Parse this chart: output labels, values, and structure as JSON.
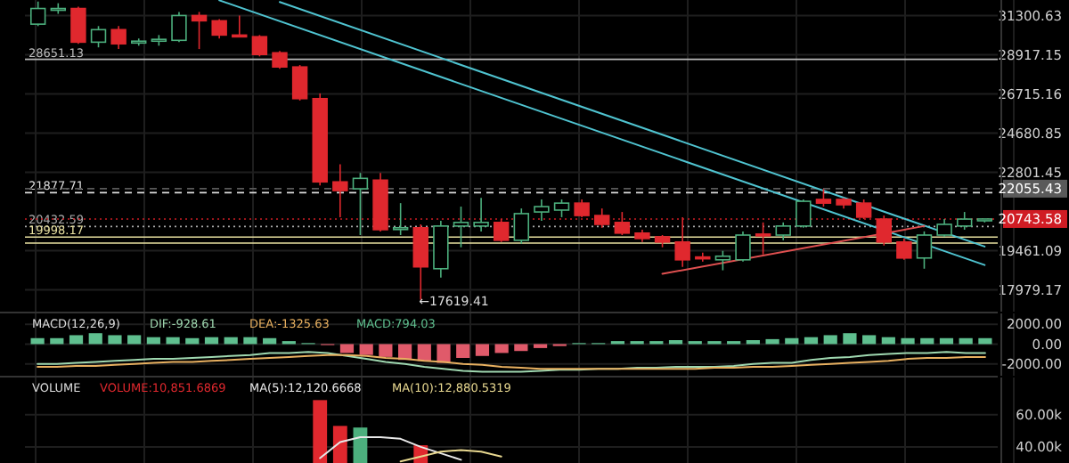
{
  "chart_data": [
    {
      "type": "candlestick",
      "categories": [
        null,
        null,
        null,
        null,
        null,
        null,
        null,
        null,
        null,
        null,
        null,
        null,
        null,
        null,
        null,
        null,
        null,
        null,
        null,
        null,
        null,
        null,
        null,
        null,
        null,
        null,
        null,
        null,
        null,
        null,
        null,
        null,
        null,
        null,
        null,
        null,
        null,
        null,
        null,
        null,
        null,
        null,
        null,
        null,
        null,
        null,
        null,
        null
      ],
      "ohlc": [
        [
          30760,
          32200,
          30640,
          31750
        ],
        [
          31640,
          32090,
          31410,
          31750
        ],
        [
          31750,
          31860,
          29560,
          29660
        ],
        [
          29660,
          30640,
          29350,
          30420
        ],
        [
          30420,
          30640,
          29250,
          29560
        ],
        [
          29610,
          29880,
          29450,
          29720
        ],
        [
          29720,
          30090,
          29450,
          29830
        ],
        [
          29770,
          31530,
          29660,
          31300
        ],
        [
          31300,
          31530,
          29250,
          30970
        ],
        [
          30970,
          31080,
          29880,
          30090
        ],
        [
          30090,
          31300,
          29990,
          30040
        ],
        [
          29990,
          30090,
          28820,
          28930
        ],
        [
          29030,
          29140,
          28110,
          28210
        ],
        [
          28210,
          28320,
          26360,
          26460
        ],
        [
          26460,
          26740,
          22200,
          22360
        ],
        [
          22360,
          23170,
          20820,
          21970
        ],
        [
          22050,
          22770,
          20080,
          22520
        ],
        [
          22440,
          22770,
          20230,
          20300
        ],
        [
          20340,
          21420,
          20080,
          20380
        ],
        [
          20380,
          20520,
          17619.41,
          18830
        ],
        [
          18760,
          20670,
          18430,
          20450
        ],
        [
          20450,
          21270,
          19590,
          20600
        ],
        [
          20450,
          21650,
          20230,
          20600
        ],
        [
          20600,
          20740,
          19800,
          19870
        ],
        [
          19870,
          21190,
          19730,
          20970
        ],
        [
          21040,
          21580,
          20670,
          21270
        ],
        [
          21120,
          21580,
          20820,
          21420
        ],
        [
          21420,
          21580,
          20820,
          20890
        ],
        [
          20890,
          21190,
          20380,
          20520
        ],
        [
          20600,
          21040,
          20080,
          20160
        ],
        [
          20160,
          20300,
          19800,
          19940
        ],
        [
          20010,
          20080,
          19590,
          19800
        ],
        [
          19800,
          20820,
          18830,
          19100
        ],
        [
          19210,
          19380,
          19030,
          19140
        ],
        [
          19100,
          19450,
          18700,
          19240
        ],
        [
          19100,
          20230,
          19030,
          20080
        ],
        [
          20120,
          20600,
          19310,
          20050
        ],
        [
          20080,
          20600,
          19870,
          20450
        ],
        [
          20450,
          21580,
          20380,
          21500
        ],
        [
          21580,
          22040,
          21270,
          21420
        ],
        [
          21580,
          21650,
          21190,
          21350
        ],
        [
          21420,
          21580,
          20740,
          20820
        ],
        [
          20740,
          20890,
          19660,
          19800
        ],
        [
          19800,
          19940,
          19100,
          19170
        ],
        [
          19170,
          20230,
          18760,
          20080
        ],
        [
          20080,
          20740,
          20010,
          20520
        ],
        [
          20450,
          21040,
          20300,
          20740
        ],
        [
          20710,
          20743.58,
          20600,
          20743.58
        ]
      ],
      "series": [
        {
          "type": "line",
          "color": "#4fc3d0",
          "values": [
            null,
            null,
            null,
            null,
            null,
            null,
            null,
            null,
            null,
            null,
            null,
            null,
            32170,
            null,
            null,
            null,
            null,
            null,
            null,
            null,
            null,
            null,
            null,
            null,
            null,
            null,
            null,
            null,
            null,
            null,
            null,
            null,
            null,
            null,
            null,
            null,
            null,
            null,
            null,
            null,
            null,
            null,
            null,
            null,
            null,
            null,
            null,
            19620
          ]
        },
        {
          "type": "line",
          "color": "#4fc3d0",
          "values": [
            null,
            null,
            null,
            null,
            null,
            null,
            null,
            null,
            null,
            32280,
            null,
            null,
            null,
            null,
            null,
            null,
            null,
            null,
            null,
            null,
            null,
            null,
            null,
            null,
            null,
            null,
            null,
            null,
            null,
            null,
            null,
            null,
            null,
            null,
            null,
            null,
            null,
            null,
            null,
            null,
            null,
            null,
            null,
            null,
            null,
            null,
            null,
            18900
          ]
        },
        {
          "type": "line",
          "color": "#e05050",
          "values": [
            null,
            null,
            null,
            null,
            null,
            null,
            null,
            null,
            null,
            null,
            null,
            null,
            null,
            null,
            null,
            null,
            null,
            null,
            null,
            null,
            null,
            null,
            null,
            null,
            null,
            null,
            null,
            null,
            null,
            null,
            null,
            18565,
            null,
            null,
            null,
            null,
            null,
            null,
            null,
            null,
            null,
            null,
            null,
            null,
            20450,
            null,
            null,
            null
          ]
        }
      ],
      "ylim": [
        17200,
        32300
      ],
      "yticks": [
        31300.63,
        28917.15,
        26715.16,
        24680.85,
        22801.45,
        19461.09,
        17979.17
      ],
      "log": true,
      "grid": true,
      "tick_labels": "y",
      "ref_lines": [
        {
          "axis": "y",
          "value": 28651.13,
          "label": "28651.13",
          "color": "#bbbbbb",
          "line_style": "solid"
        },
        {
          "axis": "y",
          "value": 21877.71,
          "label": "21877.71",
          "color": "#dddddd",
          "line_style": "dashed"
        },
        {
          "axis": "y",
          "value": 22055.43,
          "label": "22055.43",
          "color": "#5a5a5a",
          "line_style": "dashed"
        },
        {
          "axis": "y",
          "value": 20432.59,
          "label": "20432.59",
          "color": "#aaaaaa",
          "line_style": "dotted"
        },
        {
          "axis": "y",
          "value": 20743.58,
          "label": "20743.58",
          "color": "#d01c24",
          "line_style": "dotted"
        },
        {
          "axis": "y",
          "value": 19998.17,
          "label": "19998.17",
          "color": "#e8e0a0",
          "line_style": "solid"
        },
        {
          "axis": "y",
          "value": 19760,
          "label": null,
          "color": "#e8e0a0",
          "line_style": "solid"
        }
      ],
      "annotations": [
        "←17619.41"
      ]
    },
    {
      "type": "bar",
      "title": "MACD(12,26,9)",
      "categories": [
        null,
        null,
        null,
        null,
        null,
        null,
        null,
        null,
        null,
        null,
        null,
        null,
        null,
        null,
        null,
        null,
        null,
        null,
        null,
        null,
        null,
        null,
        null,
        null,
        null,
        null,
        null,
        null,
        null,
        null,
        null,
        null,
        null,
        null,
        null,
        null,
        null,
        null,
        null,
        null,
        null,
        null,
        null,
        null,
        null,
        null,
        null,
        null,
        null,
        null
      ],
      "series": [
        {
          "name": "DIF:-928.61",
          "type": "line",
          "color": "#9fd8b0",
          "values": [
            -2000,
            -2000,
            -1900,
            -1800,
            -1700,
            -1600,
            -1500,
            -1500,
            -1400,
            -1300,
            -1200,
            -1100,
            -900,
            -900,
            -800,
            -900,
            -1200,
            -1500,
            -1800,
            -2000,
            -2300,
            -2500,
            -2700,
            -2800,
            -2800,
            -2800,
            -2700,
            -2600,
            -2600,
            -2500,
            -2500,
            -2400,
            -2400,
            -2300,
            -2300,
            -2300,
            -2200,
            -2000,
            -1900,
            -1900,
            -1600,
            -1400,
            -1300,
            -1100,
            -1000,
            -900,
            -900,
            -800,
            -900,
            -900
          ]
        },
        {
          "name": "DEA:-1325.63",
          "type": "line",
          "color": "#e8b060",
          "values": [
            -2300,
            -2300,
            -2200,
            -2200,
            -2100,
            -2000,
            -1900,
            -1800,
            -1800,
            -1700,
            -1600,
            -1500,
            -1400,
            -1300,
            -1200,
            -1100,
            -1100,
            -1200,
            -1400,
            -1500,
            -1700,
            -1800,
            -2000,
            -2100,
            -2300,
            -2400,
            -2500,
            -2500,
            -2500,
            -2500,
            -2500,
            -2500,
            -2500,
            -2500,
            -2500,
            -2400,
            -2400,
            -2300,
            -2300,
            -2200,
            -2100,
            -2000,
            -1900,
            -1800,
            -1700,
            -1500,
            -1400,
            -1400,
            -1300,
            -1300
          ]
        },
        {
          "name": "MACD:794.03",
          "type": "bar",
          "color": "#5fbf8f",
          "values": [
            600,
            600,
            900,
            1100,
            900,
            900,
            700,
            700,
            600,
            700,
            700,
            700,
            600,
            300,
            100,
            -100,
            -900,
            -1100,
            -1300,
            -1600,
            -1700,
            -1900,
            -1400,
            -1200,
            -900,
            -700,
            -400,
            -200,
            100,
            100,
            300,
            300,
            300,
            400,
            300,
            300,
            300,
            400,
            500,
            600,
            700,
            900,
            1100,
            900,
            700,
            600,
            600,
            600,
            600,
            600
          ],
          "colors": [
            "#5fbf8f",
            "#5fbf8f",
            "#5fbf8f",
            "#5fbf8f",
            "#5fbf8f",
            "#5fbf8f",
            "#5fbf8f",
            "#5fbf8f",
            "#5fbf8f",
            "#5fbf8f",
            "#5fbf8f",
            "#5fbf8f",
            "#5fbf8f",
            "#5fbf8f",
            "#5fbf8f",
            "#e05a6a",
            "#e05a6a",
            "#e05a6a",
            "#e05a6a",
            "#e05a6a",
            "#e05a6a",
            "#e05a6a",
            "#e05a6a",
            "#e05a6a",
            "#e05a6a",
            "#e05a6a",
            "#e05a6a",
            "#e05a6a",
            "#5fbf8f",
            "#5fbf8f",
            "#5fbf8f",
            "#5fbf8f",
            "#5fbf8f",
            "#5fbf8f",
            "#5fbf8f",
            "#5fbf8f",
            "#5fbf8f",
            "#5fbf8f",
            "#5fbf8f",
            "#5fbf8f",
            "#5fbf8f",
            "#5fbf8f",
            "#5fbf8f",
            "#5fbf8f",
            "#5fbf8f",
            "#5fbf8f",
            "#5fbf8f",
            "#5fbf8f",
            "#5fbf8f",
            "#5fbf8f"
          ]
        }
      ],
      "ylim": [
        -3200,
        3100
      ],
      "yticks": [
        {
          "value": 2000,
          "label": "2000.00"
        },
        {
          "value": 0,
          "label": "0.00"
        },
        {
          "value": -2000,
          "label": "-2000.00"
        }
      ],
      "grid": true,
      "legend": "top left",
      "tick_labels": "y"
    },
    {
      "type": "bar",
      "title": "VOLUME",
      "categories": [
        null,
        null,
        null,
        null,
        null,
        null,
        null,
        null,
        null,
        null,
        null,
        null,
        null,
        null,
        null,
        null,
        null,
        null,
        null,
        null,
        null,
        null,
        null,
        null,
        null,
        null,
        null,
        null,
        null,
        null,
        null,
        null,
        null,
        null,
        null,
        null,
        null,
        null,
        null,
        null,
        null,
        null,
        null,
        null,
        null,
        null,
        null,
        null
      ],
      "series": [
        {
          "name": "VOLUME:10,851.6869",
          "type": "bar",
          "color": "#e0282e",
          "values": [
            null,
            null,
            null,
            null,
            null,
            null,
            null,
            null,
            null,
            null,
            null,
            null,
            null,
            null,
            69000,
            53000,
            52000,
            null,
            null,
            41000,
            null,
            null,
            null,
            null,
            null,
            null,
            null,
            null,
            null,
            null,
            null,
            null,
            null,
            null,
            null,
            null,
            null,
            null,
            null,
            null,
            null,
            null,
            null,
            null,
            null,
            null,
            null,
            null
          ],
          "colors": [
            null,
            null,
            null,
            null,
            null,
            null,
            null,
            null,
            null,
            null,
            null,
            null,
            null,
            null,
            "#e0282e",
            "#e0282e",
            "#4caf7d",
            null,
            null,
            "#e0282e",
            null,
            null,
            null,
            null,
            null,
            null,
            null,
            null,
            null,
            null,
            null,
            null,
            null,
            null,
            null,
            null,
            null,
            null,
            null,
            null,
            null,
            null,
            null,
            null,
            null,
            null,
            null,
            null
          ]
        },
        {
          "name": "MA(5):12,120.6668",
          "type": "line",
          "color": "#e8e8e8",
          "values": [
            null,
            null,
            null,
            null,
            null,
            null,
            null,
            null,
            null,
            null,
            null,
            null,
            null,
            null,
            33000,
            43000,
            46000,
            46000,
            45000,
            40000,
            36000,
            32000,
            null,
            null,
            null,
            null,
            null,
            null,
            null,
            null,
            null,
            null,
            null,
            null,
            null,
            null,
            null,
            null,
            null,
            null,
            null,
            null,
            null,
            null,
            null,
            null,
            null,
            null
          ]
        },
        {
          "name": "MA(10):12,880.5319",
          "type": "line",
          "color": "#e8d890",
          "values": [
            null,
            null,
            null,
            null,
            null,
            null,
            null,
            null,
            null,
            null,
            null,
            null,
            null,
            null,
            null,
            null,
            null,
            null,
            31000,
            null,
            37000,
            38000,
            37000,
            34000,
            null,
            null,
            null,
            null,
            null,
            null,
            null,
            null,
            null,
            null,
            null,
            null,
            null,
            null,
            null,
            null,
            null,
            null,
            null,
            null,
            null,
            null,
            null,
            null
          ]
        }
      ],
      "ylim": [
        30000,
        83000
      ],
      "yticks": [
        {
          "value": 60000,
          "label": "60.00k"
        },
        {
          "value": 40000,
          "label": "40.00k"
        }
      ],
      "grid": true,
      "legend": "top left",
      "tick_labels": "y"
    }
  ]
}
